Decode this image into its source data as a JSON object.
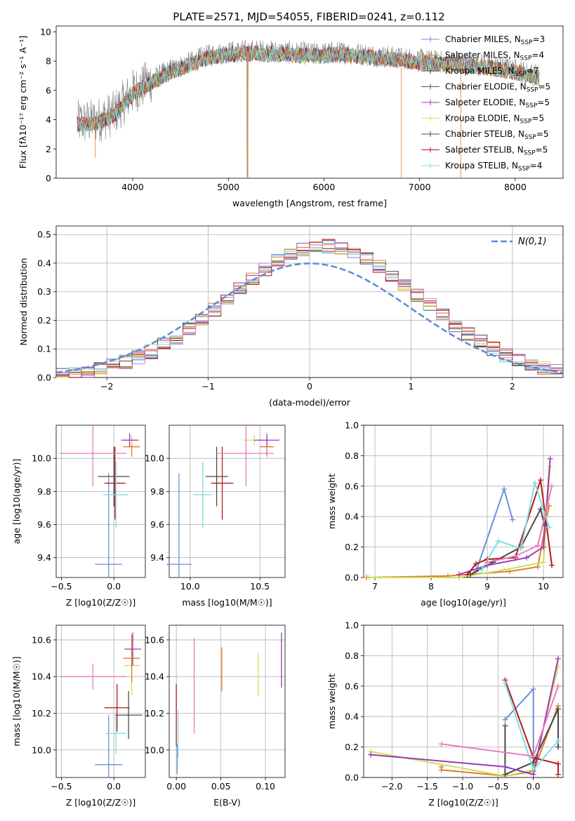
{
  "figure_title": "PLATE=2571, MJD=54055, FIBERID=0241, z=0.112",
  "colors": {
    "Chabrier MILES": "#6a8fd8",
    "Salpeter MILES": "#e8822a",
    "Kroupa MILES": "#e37a2a",
    "Chabrier ELODIE": "#555555",
    "Salpeter ELODIE": "#9c3bb5",
    "Kroupa ELODIE": "#cde05a",
    "Chabrier STELIB": "#4a4a4a",
    "Salpeter STELIB": "#b5191c",
    "Kroupa STELIB": "#7fdde0",
    "pink": "#e87dbd",
    "normal": "#5b8bd9",
    "data": "#808080"
  },
  "legend": [
    {
      "main": "Chabrier MILES, N",
      "sub": "SSP",
      "rest": "=3",
      "color": "#6a8fd8"
    },
    {
      "main": "Salpeter MILES, N",
      "sub": "SSP",
      "rest": "=4",
      "color": "#e8822a"
    },
    {
      "main": "Kroupa MILES, N",
      "sub": "SSP",
      "rest": "=7",
      "color": "#333333"
    },
    {
      "main": "Chabrier ELODIE, N",
      "sub": "SSP",
      "rest": "=5",
      "color": "#555555"
    },
    {
      "main": "Salpeter ELODIE, N",
      "sub": "SSP",
      "rest": "=5",
      "color": "#9c3bb5"
    },
    {
      "main": "Kroupa ELODIE, N",
      "sub": "SSP",
      "rest": "=5",
      "color": "#cde05a"
    },
    {
      "main": "Chabrier STELIB, N",
      "sub": "SSP",
      "rest": "=5",
      "color": "#4a4a4a"
    },
    {
      "main": "Salpeter STELIB, N",
      "sub": "SSP",
      "rest": "=5",
      "color": "#b5191c"
    },
    {
      "main": "Kroupa STELIB, N",
      "sub": "SSP",
      "rest": "=4",
      "color": "#7fdde0"
    }
  ],
  "chart_data": [
    {
      "id": "spectrum",
      "type": "line",
      "xlabel": "wavelength [Angstrom, rest frame]",
      "ylabel": "Flux [fλ10⁻¹⁷ erg cm⁻² s⁻¹ A⁻¹]",
      "xlim": [
        3200,
        8500
      ],
      "ylim": [
        0,
        10.4
      ],
      "xticks": [
        4000,
        5000,
        6000,
        7000,
        8000
      ],
      "yticks": [
        0,
        2,
        4,
        6,
        8,
        10
      ],
      "continuum": {
        "x": [
          3420,
          3600,
          3800,
          4000,
          4200,
          4400,
          4600,
          4800,
          5000,
          5300,
          5600,
          5900,
          6200,
          6500,
          6800,
          7100,
          7400,
          7700,
          8000,
          8250
        ],
        "y": [
          3.8,
          3.9,
          4.4,
          5.9,
          6.7,
          7.4,
          7.9,
          8.4,
          8.6,
          8.7,
          8.6,
          8.5,
          8.6,
          8.4,
          8.2,
          8.0,
          7.9,
          7.7,
          7.4,
          7.0
        ]
      }
    },
    {
      "id": "residuals",
      "type": "histogram",
      "xlabel": "(data-model)/error",
      "ylabel": "Normed distribution",
      "xlim": [
        -2.5,
        2.5
      ],
      "ylim": [
        0,
        0.53
      ],
      "xticks": [
        -2,
        -1,
        0,
        1,
        2
      ],
      "yticks": [
        0.0,
        0.1,
        0.2,
        0.3,
        0.4,
        0.5
      ],
      "reference_label": "N(0,1)"
    },
    {
      "id": "age_vs_Z",
      "type": "errorbar",
      "xlabel": "Z [log10(Z/Z☉)]",
      "ylabel": "age  [log10(age/yr)]",
      "xlim": [
        -0.55,
        0.3
      ],
      "ylim": [
        9.28,
        10.2
      ],
      "xticks": [
        -0.5,
        0.0
      ],
      "yticks": [
        9.4,
        9.6,
        9.8,
        10.0
      ],
      "points": [
        {
          "x": -0.05,
          "xerr": 0.13,
          "y": 9.36,
          "yerr": 0.55,
          "color": "#6a8fd8"
        },
        {
          "x": 0.17,
          "xerr": 0.08,
          "y": 10.07,
          "yerr": 0.06,
          "color": "#e37a2a"
        },
        {
          "x": 0.17,
          "xerr": 0.08,
          "y": 10.11,
          "yerr": 0.03,
          "color": "#cde05a"
        },
        {
          "x": 0.15,
          "xerr": 0.08,
          "y": 10.11,
          "yerr": 0.04,
          "color": "#9c3bb5"
        },
        {
          "x": 0.0,
          "xerr": 0.15,
          "y": 9.89,
          "yerr": 0.18,
          "color": "#4a4a4a"
        },
        {
          "x": 0.01,
          "xerr": 0.1,
          "y": 9.85,
          "yerr": 0.22,
          "color": "#b5191c"
        },
        {
          "x": 0.02,
          "xerr": 0.12,
          "y": 9.78,
          "yerr": 0.2,
          "color": "#7fdde0"
        },
        {
          "x": -0.2,
          "xerr": 0.32,
          "y": 10.03,
          "yerr": 0.2,
          "color": "#e87dbd"
        }
      ]
    },
    {
      "id": "age_vs_mass",
      "type": "errorbar",
      "xlabel": "mass [log10(M/M☉)]",
      "ylabel": "",
      "xlim": [
        9.85,
        10.68
      ],
      "ylim": [
        9.28,
        10.2
      ],
      "xticks": [
        10.0,
        10.5
      ],
      "yticks": [
        9.4,
        9.6,
        9.8,
        10.0
      ],
      "points": [
        {
          "x": 9.92,
          "xerr": 0.09,
          "y": 9.36,
          "yerr": 0.55,
          "color": "#6a8fd8"
        },
        {
          "x": 10.55,
          "xerr": 0.05,
          "y": 10.07,
          "yerr": 0.06,
          "color": "#e37a2a"
        },
        {
          "x": 10.46,
          "xerr": 0.08,
          "y": 10.11,
          "yerr": 0.03,
          "color": "#cde05a"
        },
        {
          "x": 10.55,
          "xerr": 0.09,
          "y": 10.11,
          "yerr": 0.04,
          "color": "#9c3bb5"
        },
        {
          "x": 10.19,
          "xerr": 0.08,
          "y": 9.89,
          "yerr": 0.18,
          "color": "#4a4a4a"
        },
        {
          "x": 10.23,
          "xerr": 0.08,
          "y": 9.85,
          "yerr": 0.22,
          "color": "#b5191c"
        },
        {
          "x": 10.09,
          "xerr": 0.07,
          "y": 9.78,
          "yerr": 0.2,
          "color": "#7fdde0"
        },
        {
          "x": 10.4,
          "xerr": 0.2,
          "y": 10.03,
          "yerr": 0.2,
          "color": "#e87dbd"
        }
      ]
    },
    {
      "id": "weight_vs_age",
      "type": "line",
      "xlabel": "age  [log10(age/yr)]",
      "ylabel": "mass weight",
      "xlim": [
        6.8,
        10.35
      ],
      "ylim": [
        0,
        1.0
      ],
      "xticks": [
        7,
        8,
        9,
        10
      ],
      "yticks": [
        0.0,
        0.2,
        0.4,
        0.6,
        0.8,
        1.0
      ],
      "series": [
        {
          "color": "#6a8fd8",
          "x": [
            8.8,
            9.3,
            9.45
          ],
          "y": [
            0.04,
            0.58,
            0.38
          ]
        },
        {
          "color": "#e37a2a",
          "x": [
            6.85,
            8.3,
            9.4,
            9.9,
            10.1
          ],
          "y": [
            0.0,
            0.01,
            0.04,
            0.07,
            0.47
          ]
        },
        {
          "color": "#cde05a",
          "x": [
            6.9,
            8.5,
            9.3,
            10.0,
            10.12
          ],
          "y": [
            0.0,
            0.0,
            0.05,
            0.1,
            0.73
          ]
        },
        {
          "color": "#4a4a4a",
          "x": [
            8.7,
            9.1,
            9.6,
            9.95,
            10.02
          ],
          "y": [
            0.02,
            0.1,
            0.2,
            0.45,
            0.34
          ]
        },
        {
          "color": "#9c3bb5",
          "x": [
            8.5,
            9.0,
            9.7,
            10.0,
            10.12
          ],
          "y": [
            0.02,
            0.08,
            0.13,
            0.2,
            0.78
          ]
        },
        {
          "color": "#b5191c",
          "x": [
            8.65,
            8.8,
            9.0,
            9.5,
            9.95,
            10.15
          ],
          "y": [
            0.02,
            0.09,
            0.12,
            0.13,
            0.64,
            0.08
          ]
        },
        {
          "color": "#7fdde0",
          "x": [
            8.9,
            9.2,
            9.6,
            9.85,
            10.1
          ],
          "y": [
            0.05,
            0.24,
            0.19,
            0.62,
            0.33
          ]
        },
        {
          "color": "#e87dbd",
          "x": [
            9.0,
            9.5,
            9.9,
            10.15
          ],
          "y": [
            0.1,
            0.14,
            0.21,
            0.6
          ]
        }
      ]
    },
    {
      "id": "mass_vs_Z",
      "type": "errorbar",
      "xlabel": "Z [log10(Z/Z☉)]",
      "ylabel": "mass [log10(M/M☉)]",
      "xlim": [
        -0.55,
        0.3
      ],
      "ylim": [
        9.85,
        10.68
      ],
      "xticks": [
        -0.5,
        0.0
      ],
      "yticks": [
        10.0,
        10.2,
        10.4,
        10.6
      ],
      "points": [
        {
          "x": -0.05,
          "xerr": 0.13,
          "y": 9.92,
          "yerr": 0.27,
          "color": "#6a8fd8"
        },
        {
          "x": 0.17,
          "xerr": 0.08,
          "y": 10.46,
          "yerr": 0.16,
          "color": "#cde05a"
        },
        {
          "x": 0.17,
          "xerr": 0.08,
          "y": 10.5,
          "yerr": 0.13,
          "color": "#e37a2a"
        },
        {
          "x": 0.18,
          "xerr": 0.08,
          "y": 10.55,
          "yerr": 0.09,
          "color": "#9c3bb5"
        },
        {
          "x": 0.14,
          "xerr": 0.13,
          "y": 10.19,
          "yerr": 0.13,
          "color": "#4a4a4a"
        },
        {
          "x": 0.03,
          "xerr": 0.12,
          "y": 10.23,
          "yerr": 0.13,
          "color": "#b5191c"
        },
        {
          "x": 0.02,
          "xerr": 0.1,
          "y": 10.09,
          "yerr": 0.11,
          "color": "#7fdde0"
        },
        {
          "x": -0.2,
          "xerr": 0.32,
          "y": 10.4,
          "yerr": 0.07,
          "color": "#e87dbd"
        }
      ]
    },
    {
      "id": "mass_vs_ebv",
      "type": "errorbar",
      "xlabel": "E(B-V)",
      "ylabel": "",
      "xlim": [
        -0.008,
        0.122
      ],
      "ylim": [
        9.85,
        10.68
      ],
      "xticks": [
        0.0,
        0.05,
        0.1
      ],
      "yticks": [
        10.0,
        10.2,
        10.4,
        10.6
      ],
      "points": [
        {
          "x": 0.0,
          "y": 10.19,
          "yerr": 0.17,
          "color": "#b5191c"
        },
        {
          "x": 0.001,
          "y": 9.95,
          "yerr": 0.08,
          "color": "#6a8fd8"
        },
        {
          "x": 0.002,
          "y": 10.09,
          "yerr": 0.13,
          "color": "#7fdde0"
        },
        {
          "x": 0.02,
          "y": 10.35,
          "yerr": 0.26,
          "color": "#e87dbd"
        },
        {
          "x": 0.051,
          "y": 10.44,
          "yerr": 0.12,
          "color": "#e37a2a"
        },
        {
          "x": 0.092,
          "y": 10.41,
          "yerr": 0.12,
          "color": "#cde05a"
        },
        {
          "x": 0.118,
          "y": 10.49,
          "yerr": 0.15,
          "color": "#9c3bb5"
        }
      ]
    },
    {
      "id": "weight_vs_Z",
      "type": "line",
      "xlabel": "Z [log10(Z/Z☉)]",
      "ylabel": "mass weight",
      "xlim": [
        -2.4,
        0.42
      ],
      "ylim": [
        0,
        1.0
      ],
      "xticks": [
        -2.0,
        -1.5,
        -1.0,
        -0.5,
        0.0
      ],
      "yticks": [
        0.0,
        0.2,
        0.4,
        0.6,
        0.8,
        1.0
      ],
      "series": [
        {
          "color": "#6a8fd8",
          "x": [
            -0.4,
            0.0,
            0.0
          ],
          "y": [
            0.38,
            0.58,
            0.04
          ]
        },
        {
          "color": "#e37a2a",
          "x": [
            -1.3,
            -1.3,
            -0.4,
            0.0,
            0.35
          ],
          "y": [
            0.07,
            0.05,
            0.01,
            0.04,
            0.47
          ]
        },
        {
          "color": "#cde05a",
          "x": [
            -2.3,
            -0.4,
            0.0,
            0.35
          ],
          "y": [
            0.17,
            0.01,
            0.05,
            0.73
          ]
        },
        {
          "color": "#4a4a4a",
          "x": [
            -0.4,
            -0.4,
            0.0,
            0.35,
            0.35
          ],
          "y": [
            0.34,
            0.02,
            0.1,
            0.45,
            0.2
          ]
        },
        {
          "color": "#9c3bb5",
          "x": [
            -2.3,
            -0.4,
            0.0,
            0.35
          ],
          "y": [
            0.15,
            0.07,
            0.02,
            0.78
          ]
        },
        {
          "color": "#b5191c",
          "x": [
            -0.4,
            0.0,
            0.35,
            0.35
          ],
          "y": [
            0.64,
            0.13,
            0.09,
            0.02
          ]
        },
        {
          "color": "#7fdde0",
          "x": [
            -0.4,
            0.0,
            0.35
          ],
          "y": [
            0.62,
            0.05,
            0.24
          ]
        },
        {
          "color": "#e87dbd",
          "x": [
            -1.3,
            0.0,
            0.35
          ],
          "y": [
            0.22,
            0.14,
            0.6
          ]
        }
      ]
    }
  ]
}
